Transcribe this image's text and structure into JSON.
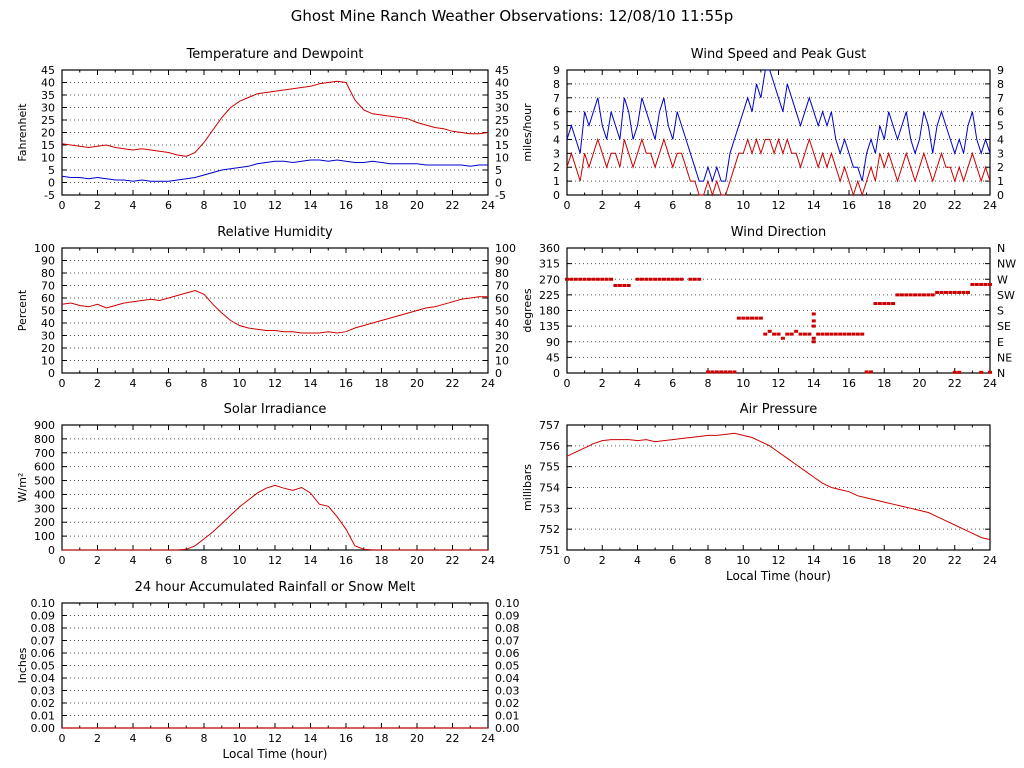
{
  "page_title": "Ghost Mine Ranch Weather Observations: 12/08/10 11:55p",
  "colors": {
    "series_red": "#cc0000",
    "series_blue": "#0000cc",
    "axis": "#000000",
    "grid": "#555555"
  },
  "chart_data": [
    {
      "id": "temperature",
      "type": "line",
      "title": "Temperature and Dewpoint",
      "xlabel": "",
      "ylabel": "Fahrenheit",
      "xlim": [
        0,
        24
      ],
      "xticks": [
        0,
        2,
        4,
        6,
        8,
        10,
        12,
        14,
        16,
        18,
        20,
        22,
        24
      ],
      "ylim": [
        -5,
        45
      ],
      "yticks": [
        -5,
        0,
        5,
        10,
        15,
        20,
        25,
        30,
        35,
        40,
        45
      ],
      "ytick_labels": [
        "-5",
        "0",
        "5",
        "10",
        "15",
        "20",
        "25",
        "30",
        "35",
        "40",
        "45"
      ],
      "ytick_labels_right": "same",
      "series": [
        {
          "name": "Dewpoint",
          "color": "blue",
          "x_start": 0,
          "x_step": 0.5,
          "values": [
            2.5,
            2,
            2,
            1.5,
            2,
            1.5,
            1,
            1,
            0.5,
            1,
            0.5,
            0.5,
            0.5,
            1,
            1.5,
            2,
            3,
            4,
            5,
            5.5,
            6,
            6.5,
            7.5,
            8,
            8.5,
            8.5,
            8,
            8.5,
            9,
            9,
            8.5,
            9,
            8.5,
            8,
            8,
            8.5,
            8,
            7.5,
            7.5,
            7.5,
            7.5,
            7,
            7,
            7,
            7,
            7,
            6.5,
            7,
            7
          ]
        },
        {
          "name": "Temperature",
          "color": "red",
          "x_start": 0,
          "x_step": 0.5,
          "values": [
            15.5,
            15,
            14.5,
            14,
            14.5,
            15,
            14,
            13.5,
            13,
            13.5,
            13,
            12.5,
            12,
            11,
            10.5,
            12,
            16,
            21,
            26,
            30,
            32.5,
            34,
            35.5,
            36,
            36.5,
            37,
            37.5,
            38,
            38.5,
            39.5,
            40,
            40.5,
            40,
            33,
            29,
            27.5,
            27,
            26.5,
            26,
            25.5,
            24,
            23,
            22,
            21.5,
            20.5,
            20,
            19.5,
            19.5,
            20
          ]
        }
      ]
    },
    {
      "id": "wind-speed",
      "type": "line",
      "title": "Wind Speed and Peak Gust",
      "xlabel": "",
      "ylabel": "miles/hour",
      "xlim": [
        0,
        24
      ],
      "xticks": [
        0,
        2,
        4,
        6,
        8,
        10,
        12,
        14,
        16,
        18,
        20,
        22,
        24
      ],
      "ylim": [
        0,
        9
      ],
      "yticks": [
        0,
        1,
        2,
        3,
        4,
        5,
        6,
        7,
        8,
        9
      ],
      "ytick_labels": [
        "0",
        "1",
        "2",
        "3",
        "4",
        "5",
        "6",
        "7",
        "8",
        "9"
      ],
      "ytick_labels_right": "same",
      "series": [
        {
          "name": "Peak Gust",
          "color": "blue",
          "x_start": 0,
          "x_step": 0.25,
          "values": [
            4,
            5,
            4,
            3,
            6,
            5,
            6,
            7,
            5,
            4,
            6,
            5,
            4,
            7,
            6,
            4,
            5,
            7,
            6,
            5,
            4,
            6,
            7,
            5,
            4,
            6,
            5,
            4,
            3,
            2,
            1,
            1,
            2,
            1,
            2,
            1,
            1,
            3,
            4,
            5,
            6,
            7,
            6,
            8,
            7,
            9,
            9,
            8,
            7,
            6,
            8,
            7,
            6,
            5,
            6,
            7,
            6,
            5,
            6,
            5,
            6,
            4,
            3,
            4,
            3,
            2,
            2,
            1,
            3,
            4,
            3,
            5,
            4,
            6,
            5,
            4,
            5,
            6,
            4,
            3,
            4,
            6,
            5,
            3,
            5,
            6,
            5,
            4,
            3,
            4,
            3,
            5,
            6,
            4,
            3,
            4,
            3
          ]
        },
        {
          "name": "Wind Speed",
          "color": "red",
          "x_start": 0,
          "x_step": 0.25,
          "values": [
            2,
            3,
            2,
            1,
            3,
            2,
            3,
            4,
            3,
            2,
            3,
            3,
            2,
            4,
            3,
            2,
            3,
            4,
            3,
            3,
            2,
            3,
            4,
            3,
            2,
            3,
            3,
            2,
            1,
            1,
            0,
            0,
            1,
            0,
            1,
            0,
            0,
            1,
            2,
            3,
            3,
            4,
            3,
            4,
            3,
            4,
            4,
            3,
            4,
            3,
            4,
            3,
            3,
            2,
            3,
            4,
            3,
            2,
            3,
            2,
            3,
            2,
            1,
            2,
            1,
            0,
            1,
            0,
            1,
            2,
            1,
            3,
            2,
            3,
            2,
            1,
            2,
            3,
            2,
            1,
            2,
            3,
            2,
            1,
            2,
            3,
            2,
            2,
            1,
            2,
            1,
            2,
            3,
            2,
            1,
            2,
            1
          ]
        }
      ]
    },
    {
      "id": "humidity",
      "type": "line",
      "title": "Relative Humidity",
      "xlabel": "",
      "ylabel": "Percent",
      "xlim": [
        0,
        24
      ],
      "xticks": [
        0,
        2,
        4,
        6,
        8,
        10,
        12,
        14,
        16,
        18,
        20,
        22,
        24
      ],
      "ylim": [
        0,
        100
      ],
      "yticks": [
        0,
        10,
        20,
        30,
        40,
        50,
        60,
        70,
        80,
        90,
        100
      ],
      "ytick_labels": [
        "0",
        "10",
        "20",
        "30",
        "40",
        "50",
        "60",
        "70",
        "80",
        "90",
        "100"
      ],
      "ytick_labels_right": "same",
      "series": [
        {
          "name": "Relative Humidity",
          "color": "red",
          "x_start": 0,
          "x_step": 0.5,
          "values": [
            55,
            56,
            54,
            53,
            55,
            52,
            54,
            56,
            57,
            58,
            59,
            58,
            60,
            62,
            64,
            66,
            63,
            55,
            48,
            42,
            38,
            36,
            35,
            34,
            34,
            33,
            33,
            32,
            32,
            32,
            33,
            32,
            33,
            36,
            38,
            40,
            42,
            44,
            46,
            48,
            50,
            52,
            53,
            55,
            57,
            59,
            60,
            61,
            61
          ]
        }
      ]
    },
    {
      "id": "wind-direction",
      "type": "scatter",
      "title": "Wind Direction",
      "xlabel": "",
      "ylabel": "degrees",
      "xlim": [
        0,
        24
      ],
      "xticks": [
        0,
        2,
        4,
        6,
        8,
        10,
        12,
        14,
        16,
        18,
        20,
        22,
        24
      ],
      "ylim": [
        0,
        360
      ],
      "yticks": [
        0,
        45,
        90,
        135,
        180,
        225,
        270,
        315,
        360
      ],
      "ytick_labels": [
        "0",
        "45",
        "90",
        "135",
        "180",
        "225",
        "270",
        "315",
        "360"
      ],
      "ytick_labels_right": [
        "N",
        "NE",
        "E",
        "SE",
        "S",
        "SW",
        "W",
        "NW",
        "N"
      ],
      "series": [
        {
          "name": "Wind Direction",
          "color": "red",
          "marker": "square",
          "x": [
            0,
            0.25,
            0.5,
            0.75,
            1,
            1.25,
            1.5,
            1.75,
            2,
            2.25,
            2.5,
            2.75,
            3,
            3.25,
            3.5,
            4,
            4.25,
            4.5,
            4.75,
            5,
            5.25,
            5.5,
            5.75,
            6,
            6.25,
            6.5,
            7,
            7.25,
            7.5,
            8,
            8.25,
            8.5,
            8.75,
            9,
            9.25,
            9.5,
            9.75,
            10,
            10.25,
            10.5,
            10.75,
            11,
            11.25,
            11.5,
            11.75,
            12,
            12.25,
            12.5,
            12.75,
            13,
            13.25,
            13.5,
            13.75,
            14,
            14,
            14,
            14,
            14,
            14.25,
            14.5,
            14.75,
            15,
            15.25,
            15.5,
            15.75,
            16,
            16.25,
            16.5,
            16.75,
            17,
            17.25,
            17.5,
            17.75,
            18,
            18.25,
            18.5,
            18.75,
            19,
            19.25,
            19.5,
            19.75,
            20,
            20.25,
            20.5,
            20.75,
            21,
            21.25,
            21.5,
            21.75,
            22,
            22.25,
            22.5,
            22.75,
            23,
            23.25,
            23.5,
            23.75,
            24,
            22,
            22.25,
            23.5,
            24
          ],
          "y": [
            270,
            270,
            270,
            270,
            270,
            270,
            270,
            270,
            270,
            270,
            270,
            252,
            252,
            252,
            252,
            270,
            270,
            270,
            270,
            270,
            270,
            270,
            270,
            270,
            270,
            270,
            270,
            270,
            270,
            3,
            3,
            3,
            3,
            3,
            3,
            3,
            158,
            158,
            158,
            158,
            158,
            158,
            112,
            120,
            112,
            112,
            100,
            112,
            112,
            120,
            112,
            112,
            112,
            100,
            135,
            150,
            170,
            90,
            112,
            112,
            112,
            112,
            112,
            112,
            112,
            112,
            112,
            112,
            112,
            3,
            3,
            200,
            200,
            200,
            200,
            200,
            225,
            225,
            225,
            225,
            225,
            225,
            225,
            225,
            225,
            232,
            232,
            232,
            232,
            232,
            232,
            232,
            232,
            255,
            255,
            255,
            255,
            255,
            2,
            2,
            2,
            2
          ]
        }
      ]
    },
    {
      "id": "solar",
      "type": "line",
      "title": "Solar Irradiance",
      "xlabel": "",
      "ylabel": "W/m²",
      "xlim": [
        0,
        24
      ],
      "xticks": [
        0,
        2,
        4,
        6,
        8,
        10,
        12,
        14,
        16,
        18,
        20,
        22,
        24
      ],
      "ylim": [
        0,
        900
      ],
      "yticks": [
        0,
        100,
        200,
        300,
        400,
        500,
        600,
        700,
        800,
        900
      ],
      "ytick_labels": [
        "0",
        "100",
        "200",
        "300",
        "400",
        "500",
        "600",
        "700",
        "800",
        "900"
      ],
      "ytick_labels_right": null,
      "series": [
        {
          "name": "Solar Irradiance",
          "color": "red",
          "x_start": 0,
          "x_step": 0.5,
          "values": [
            0,
            0,
            0,
            0,
            0,
            0,
            0,
            0,
            0,
            0,
            0,
            0,
            0,
            0,
            5,
            30,
            80,
            130,
            190,
            250,
            310,
            360,
            410,
            445,
            465,
            445,
            430,
            450,
            410,
            330,
            315,
            240,
            150,
            30,
            5,
            0,
            0,
            0,
            0,
            0,
            0,
            0,
            0,
            0,
            0,
            0,
            0,
            0,
            0
          ]
        }
      ]
    },
    {
      "id": "pressure",
      "type": "line",
      "title": "Air Pressure",
      "xlabel": "Local Time (hour)",
      "ylabel": "millibars",
      "xlim": [
        0,
        24
      ],
      "xticks": [
        0,
        2,
        4,
        6,
        8,
        10,
        12,
        14,
        16,
        18,
        20,
        22,
        24
      ],
      "ylim": [
        751,
        757
      ],
      "yticks": [
        751,
        752,
        753,
        754,
        755,
        756,
        757
      ],
      "ytick_labels": [
        "751",
        "752",
        "753",
        "754",
        "755",
        "756",
        "757"
      ],
      "ytick_labels_right": null,
      "series": [
        {
          "name": "Air Pressure",
          "color": "red",
          "x_start": 0,
          "x_step": 0.5,
          "values": [
            755.5,
            755.7,
            755.9,
            756.1,
            756.25,
            756.3,
            756.3,
            756.3,
            756.25,
            756.3,
            756.2,
            756.25,
            756.3,
            756.35,
            756.4,
            756.45,
            756.5,
            756.5,
            756.55,
            756.6,
            756.5,
            756.4,
            756.2,
            756,
            755.7,
            755.4,
            755.1,
            754.8,
            754.5,
            754.2,
            754,
            753.9,
            753.8,
            753.6,
            753.5,
            753.4,
            753.3,
            753.2,
            753.1,
            753,
            752.9,
            752.8,
            752.6,
            752.4,
            752.2,
            752,
            751.8,
            751.6,
            751.5
          ]
        }
      ]
    },
    {
      "id": "rainfall",
      "type": "line",
      "title": "24 hour Accumulated Rainfall or Snow Melt",
      "xlabel": "Local Time (hour)",
      "ylabel": "Inches",
      "xlim": [
        0,
        24
      ],
      "xticks": [
        0,
        2,
        4,
        6,
        8,
        10,
        12,
        14,
        16,
        18,
        20,
        22,
        24
      ],
      "ylim": [
        0,
        0.1
      ],
      "yticks": [
        0,
        0.01,
        0.02,
        0.03,
        0.04,
        0.05,
        0.06,
        0.07,
        0.08,
        0.09,
        0.1
      ],
      "ytick_labels": [
        "0.00",
        "0.01",
        "0.02",
        "0.03",
        "0.04",
        "0.05",
        "0.06",
        "0.07",
        "0.08",
        "0.09",
        "0.10"
      ],
      "ytick_labels_right": "same",
      "series": [
        {
          "name": "Accumulated Rainfall",
          "color": "red",
          "x_start": 0,
          "x_step": 24,
          "values": [
            0,
            0
          ]
        }
      ]
    }
  ]
}
